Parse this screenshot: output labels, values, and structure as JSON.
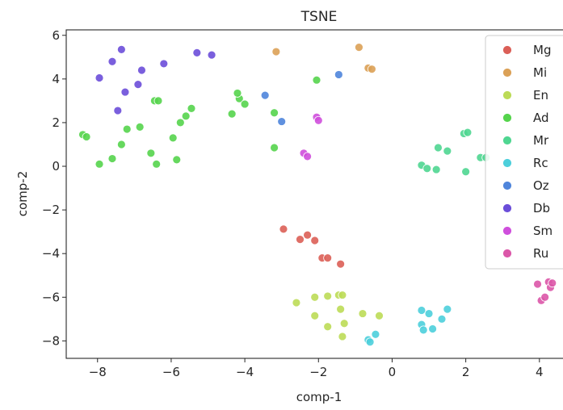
{
  "chart_data": {
    "type": "scatter",
    "title": "TSNE",
    "xlabel": "comp-1",
    "ylabel": "comp-2",
    "xlim": [
      -8.85,
      4.75
    ],
    "ylim": [
      -8.8,
      6.25
    ],
    "xticks": [
      -8,
      -6,
      -4,
      -2,
      0,
      2,
      4
    ],
    "yticks": [
      -8,
      -6,
      -4,
      -2,
      0,
      2,
      4,
      6
    ],
    "xtick_labels": [
      "−8",
      "−6",
      "−4",
      "−2",
      "0",
      "2",
      "4"
    ],
    "ytick_labels": [
      "−8",
      "−6",
      "−4",
      "−2",
      "0",
      "2",
      "4",
      "6"
    ],
    "grid": false,
    "legend_position": "upper-right",
    "series": [
      {
        "name": "Mg",
        "color": "#db5f57",
        "points": [
          [
            -2.95,
            -2.88
          ],
          [
            -2.5,
            -3.35
          ],
          [
            -2.3,
            -3.15
          ],
          [
            -1.9,
            -4.2
          ],
          [
            -1.75,
            -4.2
          ],
          [
            -1.4,
            -4.48
          ],
          [
            -2.1,
            -3.4
          ]
        ]
      },
      {
        "name": "Mi",
        "color": "#dba157",
        "points": [
          [
            -3.15,
            5.25
          ],
          [
            -0.9,
            5.45
          ],
          [
            -0.65,
            4.5
          ],
          [
            -0.55,
            4.45
          ]
        ]
      },
      {
        "name": "En",
        "color": "#bcdb57",
        "points": [
          [
            -2.6,
            -6.25
          ],
          [
            -2.1,
            -6.0
          ],
          [
            -1.75,
            -5.95
          ],
          [
            -1.45,
            -5.9
          ],
          [
            -1.35,
            -5.9
          ],
          [
            -1.4,
            -6.55
          ],
          [
            -0.8,
            -6.75
          ],
          [
            -0.35,
            -6.85
          ],
          [
            -2.1,
            -6.85
          ],
          [
            -1.75,
            -7.35
          ],
          [
            -1.3,
            -7.2
          ],
          [
            -1.35,
            -7.8
          ]
        ]
      },
      {
        "name": "Ad",
        "color": "#55d44c",
        "points": [
          [
            -8.4,
            1.45
          ],
          [
            -8.3,
            1.35
          ],
          [
            -7.95,
            0.1
          ],
          [
            -7.6,
            0.35
          ],
          [
            -7.35,
            1.0
          ],
          [
            -7.2,
            1.7
          ],
          [
            -6.85,
            1.8
          ],
          [
            -6.55,
            0.6
          ],
          [
            -6.4,
            0.1
          ],
          [
            -6.45,
            3.0
          ],
          [
            -6.35,
            3.0
          ],
          [
            -5.95,
            1.3
          ],
          [
            -5.85,
            0.3
          ],
          [
            -5.75,
            2.0
          ],
          [
            -5.6,
            2.3
          ],
          [
            -5.45,
            2.65
          ],
          [
            -4.35,
            2.4
          ],
          [
            -4.15,
            3.1
          ],
          [
            -4.2,
            3.35
          ],
          [
            -4.0,
            2.85
          ],
          [
            -3.2,
            2.45
          ],
          [
            -3.2,
            0.85
          ],
          [
            -2.05,
            3.95
          ]
        ]
      },
      {
        "name": "Mr",
        "color": "#4fd691",
        "points": [
          [
            0.8,
            0.05
          ],
          [
            0.95,
            -0.1
          ],
          [
            1.2,
            -0.15
          ],
          [
            1.25,
            0.85
          ],
          [
            1.5,
            0.7
          ],
          [
            1.95,
            1.5
          ],
          [
            2.05,
            1.55
          ],
          [
            2.0,
            -0.25
          ],
          [
            2.4,
            0.4
          ],
          [
            2.55,
            0.4
          ]
        ]
      },
      {
        "name": "Rc",
        "color": "#4dcfdb",
        "points": [
          [
            0.8,
            -6.6
          ],
          [
            1.0,
            -6.75
          ],
          [
            0.8,
            -7.25
          ],
          [
            0.85,
            -7.5
          ],
          [
            1.1,
            -7.45
          ],
          [
            1.35,
            -7.0
          ],
          [
            1.5,
            -6.55
          ],
          [
            -0.65,
            -7.95
          ],
          [
            -0.6,
            -8.05
          ],
          [
            -0.45,
            -7.7
          ]
        ]
      },
      {
        "name": "Oz",
        "color": "#4f85db",
        "points": [
          [
            -3.45,
            3.25
          ],
          [
            -3.0,
            2.05
          ],
          [
            -1.45,
            4.2
          ]
        ]
      },
      {
        "name": "Db",
        "color": "#6b4ed9",
        "points": [
          [
            -7.35,
            5.35
          ],
          [
            -7.6,
            4.8
          ],
          [
            -7.95,
            4.05
          ],
          [
            -7.25,
            3.4
          ],
          [
            -6.8,
            4.4
          ],
          [
            -6.9,
            3.75
          ],
          [
            -7.45,
            2.55
          ],
          [
            -6.2,
            4.7
          ],
          [
            -5.3,
            5.2
          ],
          [
            -4.9,
            5.1
          ]
        ]
      },
      {
        "name": "Sm",
        "color": "#cf4fdc",
        "points": [
          [
            -2.05,
            2.25
          ],
          [
            -2.0,
            2.1
          ],
          [
            -2.4,
            0.6
          ],
          [
            -2.3,
            0.45
          ]
        ]
      },
      {
        "name": "Ru",
        "color": "#db57a9",
        "points": [
          [
            3.95,
            -5.4
          ],
          [
            4.05,
            -6.15
          ],
          [
            4.15,
            -6.0
          ],
          [
            4.25,
            -5.3
          ],
          [
            4.3,
            -5.55
          ],
          [
            4.35,
            -5.35
          ]
        ]
      }
    ]
  }
}
